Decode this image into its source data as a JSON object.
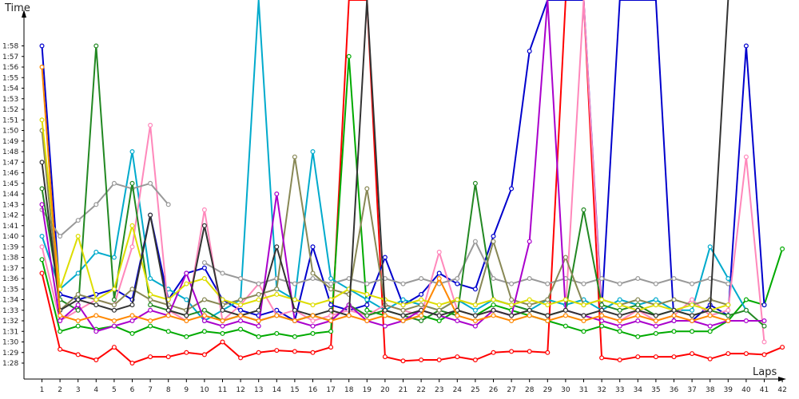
{
  "chart_data": {
    "type": "line",
    "title": "",
    "xlabel": "Laps",
    "ylabel": "Time",
    "x_ticks": [
      "1",
      "2",
      "3",
      "4",
      "5",
      "6",
      "7",
      "8",
      "9",
      "10",
      "11",
      "12",
      "13",
      "14",
      "15",
      "16",
      "17",
      "18",
      "19",
      "20",
      "21",
      "22",
      "23",
      "24",
      "25",
      "26",
      "27",
      "28",
      "29",
      "30",
      "31",
      "32",
      "33",
      "34",
      "35",
      "36",
      "37",
      "38",
      "39",
      "40",
      "41",
      "42"
    ],
    "y_ticks": [
      "1:28",
      "1:29",
      "1:30",
      "1:31",
      "1:32",
      "1:33",
      "1:34",
      "1:35",
      "1:36",
      "1:37",
      "1:38",
      "1:39",
      "1:40",
      "1:41",
      "1:42",
      "1:43",
      "1:44",
      "1:45",
      "1:46",
      "1:47",
      "1:48",
      "1:49",
      "1:50",
      "1:51",
      "1:52",
      "1:53",
      "1:54",
      "1:55",
      "1:56",
      "1:57",
      "1:58"
    ],
    "ylim_seconds": [
      87,
      119
    ],
    "grid": false,
    "legend": "none",
    "series": [
      {
        "color": "#ff0000",
        "values": [
          96.5,
          89.3,
          88.8,
          88.3,
          89.5,
          88.0,
          88.6,
          88.6,
          89.0,
          88.8,
          90.0,
          88.5,
          89.0,
          89.2,
          89.1,
          89.0,
          89.5,
          130,
          130,
          88.6,
          88.2,
          88.3,
          88.3,
          88.6,
          88.3,
          89.0,
          89.1,
          89.1,
          89.0,
          130,
          130,
          88.5,
          88.3,
          88.6,
          88.6,
          88.6,
          88.9,
          88.4,
          88.9,
          88.9,
          88.8,
          89.5
        ]
      },
      {
        "color": "#00aa00",
        "values": [
          97.8,
          91.0,
          91.5,
          91.2,
          91.5,
          90.8,
          91.5,
          91.0,
          90.5,
          91.0,
          90.8,
          91.2,
          90.5,
          90.8,
          90.5,
          90.8,
          91.0,
          117.0,
          93.0,
          92.5,
          92.0,
          92.5,
          92.0,
          93.0,
          92.5,
          93.5,
          93.0,
          92.5,
          92.0,
          91.5,
          91.0,
          91.5,
          91.0,
          90.5,
          90.8,
          91.0,
          91.0,
          91.0,
          92.0,
          94.0,
          93.5,
          98.8
        ]
      },
      {
        "color": "#0000cc",
        "values": [
          118.0,
          94.5,
          94.0,
          94.5,
          95.0,
          94.0,
          102.0,
          94.0,
          96.5,
          97.0,
          94.0,
          93.0,
          92.5,
          93.0,
          92.0,
          99.0,
          93.5,
          93.0,
          93.5,
          98.0,
          93.5,
          94.5,
          96.5,
          95.5,
          95.0,
          100.0,
          104.5,
          117.5,
          130,
          130,
          130,
          93.0,
          130,
          130,
          130,
          92.0,
          92.0,
          93.5,
          92.5,
          118.0,
          93.5,
          0
        ]
      },
      {
        "color": "#00aacc",
        "values": [
          100.0,
          95.0,
          96.5,
          98.5,
          98.0,
          108.0,
          96.0,
          95.0,
          94.0,
          92.0,
          93.0,
          94.0,
          130,
          95.0,
          94.0,
          108.0,
          96.0,
          95.0,
          94.0,
          93.0,
          94.0,
          93.5,
          93.0,
          94.0,
          93.0,
          94.0,
          93.5,
          93.0,
          94.0,
          93.5,
          94.0,
          93.0,
          94.0,
          93.5,
          94.0,
          93.0,
          93.0,
          99.0,
          96.0,
          93.0,
          0,
          0
        ]
      },
      {
        "color": "#ff88bb",
        "values": [
          99.0,
          92.0,
          93.0,
          94.0,
          93.5,
          99.0,
          110.5,
          93.0,
          92.0,
          102.5,
          92.0,
          93.5,
          95.5,
          92.5,
          93.0,
          92.0,
          92.5,
          93.0,
          92.5,
          93.5,
          93.0,
          92.5,
          98.5,
          93.0,
          92.5,
          93.0,
          92.5,
          93.0,
          92.5,
          93.0,
          130,
          92.5,
          92.0,
          93.0,
          92.0,
          92.5,
          94.0,
          92.5,
          93.0,
          107.5,
          90.0,
          0
        ]
      },
      {
        "color": "#999999",
        "values": [
          102.5,
          100.0,
          101.5,
          103.0,
          105.0,
          104.5,
          105.0,
          103.0,
          0,
          97.5,
          96.5,
          96.0,
          95.5,
          96.0,
          95.5,
          96.0,
          95.5,
          96.0,
          95.5,
          96.0,
          95.5,
          96.0,
          95.5,
          96.0,
          99.5,
          96.0,
          95.5,
          96.0,
          95.5,
          96.0,
          95.5,
          96.0,
          95.5,
          96.0,
          95.5,
          96.0,
          95.5,
          96.0,
          95.5,
          0,
          0,
          0
        ]
      },
      {
        "color": "#228822",
        "values": [
          104.5,
          94.0,
          93.0,
          118.0,
          94.0,
          105.0,
          93.5,
          93.0,
          92.5,
          93.0,
          92.0,
          92.5,
          92.0,
          92.5,
          92.0,
          92.5,
          92.0,
          93.5,
          92.5,
          93.0,
          92.5,
          92.0,
          93.0,
          92.5,
          105.0,
          94.0,
          93.5,
          93.0,
          92.5,
          93.0,
          102.5,
          93.5,
          93.0,
          93.5,
          92.5,
          93.0,
          92.5,
          93.0,
          92.5,
          93.0,
          91.5,
          0
        ]
      },
      {
        "color": "#888855",
        "values": [
          110.0,
          93.0,
          94.5,
          94.0,
          93.5,
          95.0,
          94.0,
          93.5,
          93.0,
          94.0,
          93.5,
          94.0,
          94.5,
          95.0,
          107.5,
          96.5,
          95.0,
          94.5,
          104.5,
          93.5,
          93.0,
          93.5,
          93.0,
          94.0,
          93.5,
          99.5,
          94.0,
          93.5,
          94.0,
          98.0,
          93.5,
          94.0,
          93.5,
          94.0,
          93.5,
          94.0,
          93.5,
          94.0,
          93.5,
          0,
          0,
          0
        ]
      },
      {
        "color": "#aa00cc",
        "values": [
          103.0,
          92.0,
          93.5,
          91.0,
          91.5,
          92.0,
          93.0,
          92.5,
          96.5,
          92.0,
          91.5,
          92.0,
          91.5,
          104.0,
          92.0,
          91.5,
          92.0,
          93.5,
          92.0,
          91.5,
          92.0,
          93.0,
          92.5,
          92.0,
          91.5,
          93.0,
          92.5,
          99.5,
          130,
          93.0,
          92.5,
          92.0,
          91.5,
          92.0,
          91.5,
          92.0,
          92.0,
          91.5,
          92.0,
          92.0,
          92.0,
          0
        ]
      },
      {
        "color": "#dddd00",
        "values": [
          111.0,
          95.0,
          100.0,
          94.0,
          95.0,
          101.0,
          94.5,
          94.0,
          95.5,
          96.0,
          94.0,
          93.5,
          94.0,
          94.5,
          94.0,
          93.5,
          94.0,
          95.0,
          94.5,
          94.0,
          93.5,
          94.0,
          93.5,
          94.0,
          93.5,
          94.0,
          93.5,
          94.0,
          93.5,
          94.0,
          93.5,
          94.0,
          93.5,
          93.0,
          93.5,
          93.0,
          93.5,
          93.0,
          93.5,
          0,
          0,
          0
        ]
      },
      {
        "color": "#333333",
        "values": [
          107.0,
          93.0,
          94.0,
          93.5,
          93.0,
          93.5,
          102.0,
          93.0,
          92.5,
          101.0,
          93.0,
          92.5,
          93.0,
          99.0,
          93.0,
          92.5,
          93.0,
          92.5,
          130,
          93.0,
          92.5,
          93.0,
          92.5,
          93.0,
          92.5,
          93.0,
          92.5,
          93.0,
          92.5,
          93.0,
          92.5,
          93.0,
          92.5,
          93.0,
          92.5,
          93.0,
          92.5,
          93.0,
          130,
          0,
          0,
          0
        ]
      },
      {
        "color": "#ff8800",
        "values": [
          116.0,
          92.5,
          92.0,
          92.5,
          92.0,
          92.5,
          92.0,
          92.5,
          92.0,
          92.5,
          92.0,
          92.5,
          92.0,
          92.5,
          92.0,
          92.5,
          92.0,
          92.5,
          92.0,
          92.5,
          92.0,
          92.5,
          96.0,
          92.5,
          92.0,
          92.5,
          92.0,
          92.5,
          92.0,
          92.5,
          92.0,
          92.5,
          92.0,
          92.5,
          92.0,
          92.5,
          92.0,
          92.5,
          92.0,
          0,
          0,
          0
        ]
      }
    ]
  }
}
